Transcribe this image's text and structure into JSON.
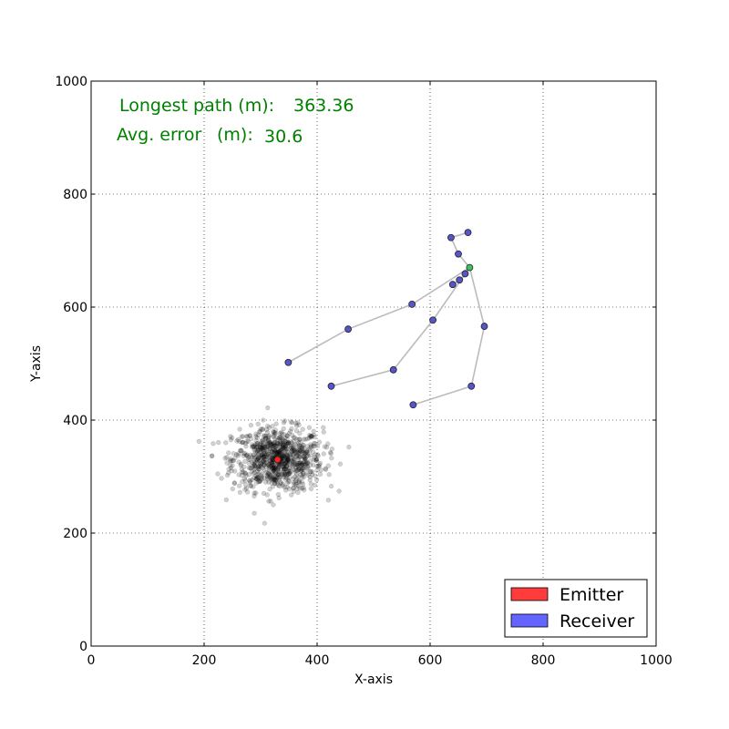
{
  "chart_data": {
    "type": "scatter",
    "xlabel": "X-axis",
    "ylabel": "Y-axis",
    "xlim": [
      0,
      1000
    ],
    "ylim": [
      0,
      1000
    ],
    "xticks": [
      0,
      200,
      400,
      600,
      800,
      1000
    ],
    "yticks": [
      0,
      200,
      400,
      600,
      800,
      1000
    ],
    "grid": true,
    "annotations": {
      "longest_path_label": "Longest path (m):",
      "longest_path_value": "363.36",
      "avg_error_label": "Avg. error",
      "avg_error_unit": "(m):",
      "avg_error_value": "30.6"
    },
    "legend": {
      "placement": "bottom-right",
      "entries": [
        {
          "name": "Emitter",
          "color": "#ff3b3b"
        },
        {
          "name": "Receiver",
          "color": "#6464ff"
        }
      ]
    },
    "emitter": {
      "x": 330,
      "y": 330,
      "color": "#ff2020"
    },
    "hub": {
      "x": 670,
      "y": 670,
      "color": "#40c060"
    },
    "receiver_color": "#5555cc",
    "path_color": "#bbbbbb",
    "receiver_paths": [
      [
        [
          670,
          670
        ],
        [
          662,
          659
        ],
        [
          652,
          648
        ],
        [
          640,
          640
        ]
      ],
      [
        [
          670,
          670
        ],
        [
          650,
          694
        ],
        [
          637,
          723
        ],
        [
          667,
          732
        ]
      ],
      [
        [
          670,
          670
        ],
        [
          568,
          605
        ],
        [
          455,
          561
        ],
        [
          349,
          502
        ]
      ],
      [
        [
          670,
          670
        ],
        [
          605,
          577
        ],
        [
          535,
          489
        ],
        [
          425,
          460
        ]
      ],
      [
        [
          670,
          670
        ],
        [
          696,
          566
        ],
        [
          673,
          460
        ],
        [
          570,
          427
        ]
      ]
    ],
    "cloud": {
      "center": [
        330,
        330
      ],
      "spread_x": 40,
      "spread_y": 28,
      "count": 900,
      "color": "#000000"
    }
  }
}
